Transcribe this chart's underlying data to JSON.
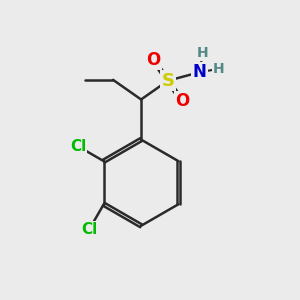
{
  "background_color": "#ebebeb",
  "bond_color": "#2a2a2a",
  "bond_width": 1.8,
  "atom_colors": {
    "S": "#cccc00",
    "O": "#ee0000",
    "N": "#0000cc",
    "Cl": "#00bb00",
    "H": "#558888",
    "C": "#2a2a2a"
  },
  "figsize": [
    3.0,
    3.0
  ],
  "dpi": 100
}
